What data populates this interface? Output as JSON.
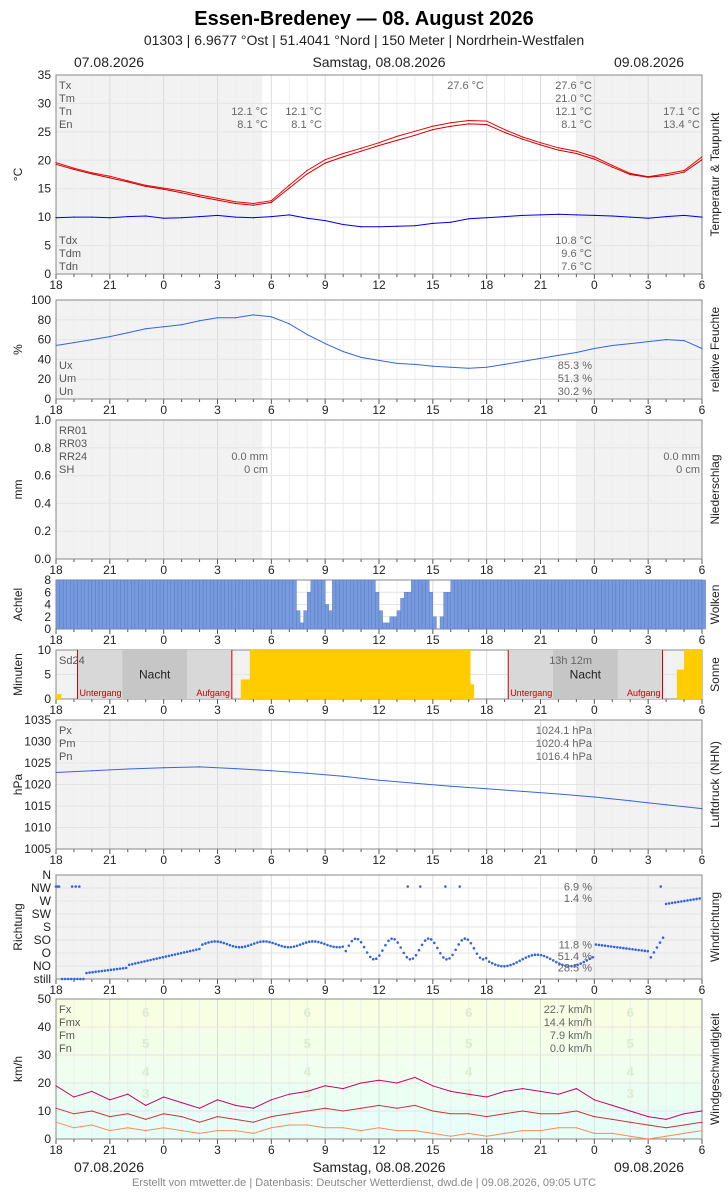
{
  "header": {
    "title": "Essen-Bredeney  —  08. August 2026",
    "subtitle": "01303  |  6.9677 °Ost  |  51.4041 °Nord  |  150 Meter  |  Nordrhein-Westfalen",
    "date_left": "07.08.2026",
    "date_center": "Samstag, 08.08.2026",
    "date_right": "09.08.2026"
  },
  "footer": {
    "date_left": "07.08.2026",
    "date_center": "Samstag, 08.08.2026",
    "date_right": "09.08.2026",
    "credits": "Erstellt von mtwetter.de | Datenbasis: Deutscher Wetterdienst, dwd.de | 09.08.2026, 09:05 UTC"
  },
  "x_ticks": [
    "18",
    "21",
    "0",
    "3",
    "6",
    "9",
    "12",
    "15",
    "18",
    "21",
    "0",
    "3",
    "6"
  ],
  "chart_data": [
    {
      "id": "temp",
      "type": "line",
      "ylabel": "°C",
      "side_label": "Temperatur & Taupunkt",
      "ylim": [
        0,
        35
      ],
      "yticks": [
        "0",
        "5",
        "10",
        "15",
        "20",
        "25",
        "30",
        "35"
      ],
      "x_hours": [
        0,
        1,
        2,
        3,
        4,
        5,
        6,
        7,
        8,
        9,
        10,
        11,
        12,
        13,
        14,
        15,
        16,
        17,
        18,
        19,
        20,
        21,
        22,
        23,
        24,
        25,
        26,
        27,
        28,
        29,
        30,
        31,
        32,
        33,
        34,
        35,
        36
      ],
      "series": [
        {
          "name": "Tx",
          "color": "#ee0000",
          "values": [
            19.6,
            18.6,
            17.8,
            17.2,
            16.4,
            15.6,
            15.1,
            14.6,
            13.9,
            13.3,
            12.7,
            12.4,
            12.9,
            15.6,
            18.2,
            20.1,
            21.2,
            22.1,
            23.1,
            24.2,
            25.1,
            26.0,
            26.6,
            27.0,
            26.9,
            25.4,
            24.1,
            23.1,
            22.2,
            21.6,
            20.6,
            19.1,
            17.7,
            17.1,
            17.6,
            18.2,
            20.6
          ]
        },
        {
          "name": "Tm",
          "color": "#cc0000",
          "values": [
            19.3,
            18.4,
            17.6,
            16.9,
            16.2,
            15.4,
            14.9,
            14.3,
            13.6,
            13.0,
            12.4,
            12.1,
            12.6,
            15.1,
            17.6,
            19.5,
            20.6,
            21.6,
            22.6,
            23.5,
            24.4,
            25.4,
            26.0,
            26.4,
            26.3,
            24.9,
            23.7,
            22.7,
            21.8,
            21.2,
            20.2,
            18.8,
            17.5,
            17.0,
            17.3,
            17.9,
            20.1
          ]
        }
      ],
      "dew_series": {
        "name": "Td",
        "color": "#0000dd",
        "values": [
          9.9,
          10.0,
          10.0,
          9.9,
          10.1,
          10.2,
          9.8,
          9.9,
          10.1,
          10.3,
          10.0,
          9.9,
          10.1,
          10.4,
          9.8,
          9.4,
          8.7,
          8.3,
          8.3,
          8.4,
          8.5,
          8.9,
          9.1,
          9.7,
          9.9,
          10.1,
          10.3,
          10.4,
          10.5,
          10.4,
          10.3,
          10.2,
          10.0,
          9.8,
          10.1,
          10.3,
          10.0
        ]
      },
      "legend": [
        {
          "label": "Tx",
          "value": "27.6 °C"
        },
        {
          "label": "Tm",
          "value": "21.0 °C"
        },
        {
          "label": "Tn",
          "value": "12.1 °C"
        },
        {
          "label": "En",
          "value": "8.1 °C"
        }
      ],
      "legend_low": [
        {
          "label": "Tdx",
          "value": "10.8 °C"
        },
        {
          "label": "Tdm",
          "value": "9.6 °C"
        },
        {
          "label": "Tdn",
          "value": "7.6 °C"
        }
      ],
      "prev_day_values": [
        "12.1 °C",
        "8.1 °C"
      ],
      "day_values_tn": [
        "12.1 °C",
        "8.1 °C"
      ],
      "next_day_values": [
        "17.1 °C",
        "13.4 °C"
      ],
      "max_annotation": "27.6 °C"
    },
    {
      "id": "humidity",
      "type": "line",
      "ylabel": "%",
      "side_label": "relative Feuchte",
      "ylim": [
        0,
        100
      ],
      "yticks": [
        "0",
        "20",
        "40",
        "60",
        "80",
        "100"
      ],
      "x_hours": [
        0,
        1,
        2,
        3,
        4,
        5,
        6,
        7,
        8,
        9,
        10,
        11,
        12,
        13,
        14,
        15,
        16,
        17,
        18,
        19,
        20,
        21,
        22,
        23,
        24,
        25,
        26,
        27,
        28,
        29,
        30,
        31,
        32,
        33,
        34,
        35,
        36
      ],
      "series": [
        {
          "name": "U",
          "color": "#3366dd",
          "values": [
            54,
            57,
            60,
            63,
            67,
            71,
            73,
            75,
            79,
            82,
            82,
            85,
            83,
            76,
            65,
            56,
            48,
            42,
            39,
            36,
            35,
            33,
            32,
            31,
            32,
            35,
            38,
            41,
            44,
            47,
            51,
            54,
            56,
            58,
            60,
            59,
            51
          ]
        }
      ],
      "legend": [
        {
          "label": "Ux",
          "value": "85.3 %"
        },
        {
          "label": "Um",
          "value": "51.3 %"
        },
        {
          "label": "Un",
          "value": "30.2 %"
        }
      ]
    },
    {
      "id": "precip",
      "type": "bar",
      "ylabel": "mm",
      "side_label": "Niederschlag",
      "ylim": [
        0,
        1.0
      ],
      "yticks": [
        "0.0",
        "0.2",
        "0.4",
        "0.6",
        "0.8",
        "1.0"
      ],
      "legend": [
        {
          "label": "RR01",
          "value": ""
        },
        {
          "label": "RR03",
          "value": ""
        },
        {
          "label": "RR24",
          "value": "0.0 mm"
        },
        {
          "label": "SH",
          "value": "0 cm"
        }
      ],
      "prev_day_values": [
        "0.0 mm",
        "0 cm"
      ],
      "next_day_values": [
        "0.0 mm",
        "0 cm"
      ]
    },
    {
      "id": "clouds",
      "type": "bar",
      "ylabel": "Achtel",
      "side_label": "Wolken",
      "ylim": [
        0,
        8
      ],
      "yticks": [
        "0",
        "2",
        "4",
        "6",
        "8"
      ],
      "gaps": [
        {
          "start": 13.2,
          "end": 14.1,
          "values": [
            6,
            3,
            1,
            3,
            6
          ]
        },
        {
          "start": 14.9,
          "end": 15.3,
          "values": [
            4,
            3
          ]
        },
        {
          "start": 17.7,
          "end": 19.6,
          "values": [
            6,
            3,
            1,
            2,
            2,
            3,
            5,
            6
          ]
        },
        {
          "start": 20.7,
          "end": 21.8,
          "values": [
            6,
            2,
            0,
            2,
            6
          ]
        }
      ],
      "full_value": 8
    },
    {
      "id": "sun",
      "type": "bar",
      "ylabel": "Minuten",
      "side_label": "Sonne",
      "ylim": [
        0,
        10
      ],
      "yticks": [
        "0",
        "5",
        "10"
      ],
      "legend": [
        {
          "label": "Sd24",
          "value": "13h 12m"
        }
      ],
      "night_label": "Nacht",
      "sunset_label": "Untergang",
      "sunrise_label": "Aufgang",
      "nights": [
        {
          "sunset": 1.2,
          "sunrise": 4.6
        },
        {
          "sunset": 1.2,
          "sunrise": 4.6
        }
      ],
      "sun_periods": [
        {
          "start": 10.8,
          "end": 23.1
        }
      ],
      "color": "#ffcc00"
    },
    {
      "id": "pressure",
      "type": "line",
      "ylabel": "hPa",
      "side_label": "Luftdruck (NHN)",
      "ylim": [
        1005,
        1035
      ],
      "yticks": [
        "1005",
        "1010",
        "1015",
        "1020",
        "1025",
        "1030",
        "1035"
      ],
      "x_hours": [
        0,
        2,
        4,
        6,
        8,
        10,
        12,
        14,
        16,
        18,
        20,
        22,
        24,
        26,
        28,
        30,
        32,
        34,
        36
      ],
      "series": [
        {
          "name": "P",
          "color": "#3366dd",
          "values": [
            1022.8,
            1023.2,
            1023.6,
            1023.9,
            1024.1,
            1023.7,
            1023.2,
            1022.6,
            1021.9,
            1021.0,
            1020.3,
            1019.6,
            1019.0,
            1018.4,
            1017.8,
            1017.1,
            1016.2,
            1015.3,
            1014.4
          ]
        }
      ],
      "legend": [
        {
          "label": "Px",
          "value": "1024.1 hPa"
        },
        {
          "label": "Pm",
          "value": "1020.4 hPa"
        },
        {
          "label": "Pn",
          "value": "1016.4 hPa"
        }
      ]
    },
    {
      "id": "winddir",
      "type": "scatter",
      "ylabel": "Richtung",
      "side_label": "Windrichtung",
      "ylim": [
        0,
        9
      ],
      "yticks": [
        "still",
        "NO",
        "O",
        "SO",
        "S",
        "SW",
        "W",
        "NW",
        "N"
      ],
      "color": "#3366dd",
      "legend_values": [
        "6.9 %",
        "1.4 %",
        "",
        "",
        "",
        "11.8 %",
        "51.4 %",
        "28.5 %"
      ]
    },
    {
      "id": "windspeed",
      "type": "line",
      "ylabel": "km/h",
      "side_label": "Windgeschwindigkeit",
      "ylim": [
        0,
        50
      ],
      "yticks": [
        "0",
        "10",
        "20",
        "30",
        "40",
        "50"
      ],
      "beaufort_labels": [
        "3",
        "4",
        "5",
        "6"
      ],
      "x_hours": [
        0,
        1,
        2,
        3,
        4,
        5,
        6,
        7,
        8,
        9,
        10,
        11,
        12,
        13,
        14,
        15,
        16,
        17,
        18,
        19,
        20,
        21,
        22,
        23,
        24,
        25,
        26,
        27,
        28,
        29,
        30,
        31,
        32,
        33,
        34,
        35,
        36
      ],
      "series": [
        {
          "name": "Fx",
          "color": "#cc0066",
          "values": [
            19,
            15,
            17,
            14,
            16,
            12,
            15,
            13,
            11,
            14,
            12,
            11,
            14,
            16,
            17,
            19,
            18,
            20,
            21,
            20,
            22,
            19,
            17,
            16,
            15,
            17,
            18,
            17,
            16,
            18,
            14,
            12,
            10,
            8,
            7,
            9,
            10
          ]
        },
        {
          "name": "Fmx",
          "color": "#cc3333",
          "values": [
            11,
            9,
            10,
            8,
            9,
            7,
            9,
            8,
            6,
            8,
            7,
            6,
            8,
            9,
            10,
            11,
            10,
            11,
            12,
            11,
            12,
            10,
            9,
            9,
            8,
            9,
            10,
            9,
            9,
            10,
            8,
            7,
            6,
            5,
            4,
            5,
            6
          ]
        },
        {
          "name": "Fm",
          "color": "#ff8855",
          "values": [
            6,
            4,
            5,
            3,
            4,
            3,
            4,
            3,
            2,
            3,
            3,
            2,
            4,
            5,
            5,
            4,
            4,
            3,
            4,
            3,
            3,
            2,
            1,
            2,
            1,
            2,
            3,
            3,
            4,
            4,
            2,
            2,
            1,
            0,
            1,
            2,
            3
          ]
        }
      ],
      "legend": [
        {
          "label": "Fx",
          "value": "22.7 km/h",
          "color": "#cc0066"
        },
        {
          "label": "Fmx",
          "value": "14.4 km/h",
          "color": "#555555"
        },
        {
          "label": "Fm",
          "value": "7.9 km/h",
          "color": "#cc3333"
        },
        {
          "label": "Fn",
          "value": "0.0 km/h",
          "color": "#ff8855"
        }
      ]
    }
  ]
}
